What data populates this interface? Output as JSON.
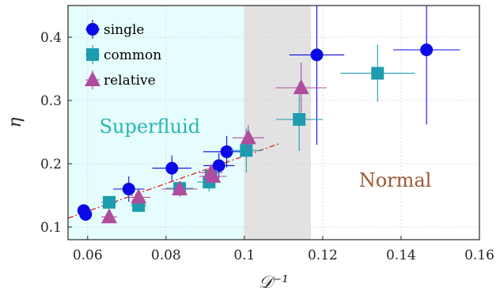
{
  "chart_data": {
    "type": "scatter",
    "xlabel": "𝒟⁻¹",
    "ylabel": "η",
    "xlim": [
      0.055,
      0.16
    ],
    "ylim": [
      0.08,
      0.45
    ],
    "xticks": [
      "0.06",
      "0.08",
      "0.1",
      "0.12",
      "0.14",
      "0.16"
    ],
    "yticks": [
      "0.1",
      "0.2",
      "0.3",
      "0.4"
    ],
    "grid": true,
    "legend_position": "top-left",
    "regions": [
      {
        "label": "Superfluid",
        "x_from": 0.055,
        "x_to": 0.1,
        "color": "#e6fdfd",
        "text_color": "#2bb6b0"
      },
      {
        "label": "",
        "x_from": 0.1,
        "x_to": 0.117,
        "color": "#e2e2e2",
        "text_color": ""
      },
      {
        "label": "Normal",
        "x_from": 0.117,
        "x_to": 0.16,
        "color": "#ffffff",
        "text_color": "#9a5a35"
      }
    ],
    "fit_line": {
      "x": [
        0.055,
        0.109
      ],
      "y": [
        0.114,
        0.232
      ],
      "color": "#e0201a"
    },
    "series": [
      {
        "name": "single",
        "marker": "circle",
        "color": "#0a0ae6",
        "points": [
          {
            "x": 0.059,
            "y": 0.126,
            "xerr": 0.0012,
            "yerr": 0.005
          },
          {
            "x": 0.0595,
            "y": 0.12,
            "xerr": 0.0012,
            "yerr": 0.005
          },
          {
            "x": 0.0705,
            "y": 0.16,
            "xerr": 0.004,
            "yerr": 0.02
          },
          {
            "x": 0.0815,
            "y": 0.193,
            "xerr": 0.005,
            "yerr": 0.02
          },
          {
            "x": 0.0935,
            "y": 0.197,
            "xerr": 0.004,
            "yerr": 0.02
          },
          {
            "x": 0.0955,
            "y": 0.219,
            "xerr": 0.006,
            "yerr": 0.025
          },
          {
            "x": 0.1185,
            "y": 0.372,
            "xerr": 0.007,
            "yerr": 0.142
          },
          {
            "x": 0.1465,
            "y": 0.38,
            "xerr": 0.0085,
            "yerr": 0.118
          }
        ]
      },
      {
        "name": "common",
        "marker": "square",
        "color": "#1d9cae",
        "points": [
          {
            "x": 0.0655,
            "y": 0.139,
            "xerr": 0.002,
            "yerr": 0.006
          },
          {
            "x": 0.073,
            "y": 0.134,
            "xerr": 0.002,
            "yerr": 0.008
          },
          {
            "x": 0.0835,
            "y": 0.161,
            "xerr": 0.0035,
            "yerr": 0.012
          },
          {
            "x": 0.091,
            "y": 0.171,
            "xerr": 0.003,
            "yerr": 0.015
          },
          {
            "x": 0.0915,
            "y": 0.18,
            "xerr": 0.003,
            "yerr": 0.012
          },
          {
            "x": 0.1005,
            "y": 0.221,
            "xerr": 0.004,
            "yerr": 0.035
          },
          {
            "x": 0.114,
            "y": 0.27,
            "xerr": 0.006,
            "yerr": 0.05
          },
          {
            "x": 0.134,
            "y": 0.343,
            "xerr": 0.0095,
            "yerr": 0.045
          }
        ]
      },
      {
        "name": "relative",
        "marker": "triangle",
        "color": "#b04d9e",
        "points": [
          {
            "x": 0.0655,
            "y": 0.116,
            "xerr": 0.002,
            "yerr": 0.005
          },
          {
            "x": 0.073,
            "y": 0.147,
            "xerr": 0.003,
            "yerr": 0.008
          },
          {
            "x": 0.0835,
            "y": 0.16,
            "xerr": 0.0045,
            "yerr": 0.012
          },
          {
            "x": 0.0915,
            "y": 0.186,
            "xerr": 0.003,
            "yerr": 0.012
          },
          {
            "x": 0.092,
            "y": 0.18,
            "xerr": 0.0035,
            "yerr": 0.01
          },
          {
            "x": 0.101,
            "y": 0.241,
            "xerr": 0.004,
            "yerr": 0.02
          },
          {
            "x": 0.1145,
            "y": 0.32,
            "xerr": 0.0065,
            "yerr": 0.04
          }
        ]
      }
    ]
  }
}
